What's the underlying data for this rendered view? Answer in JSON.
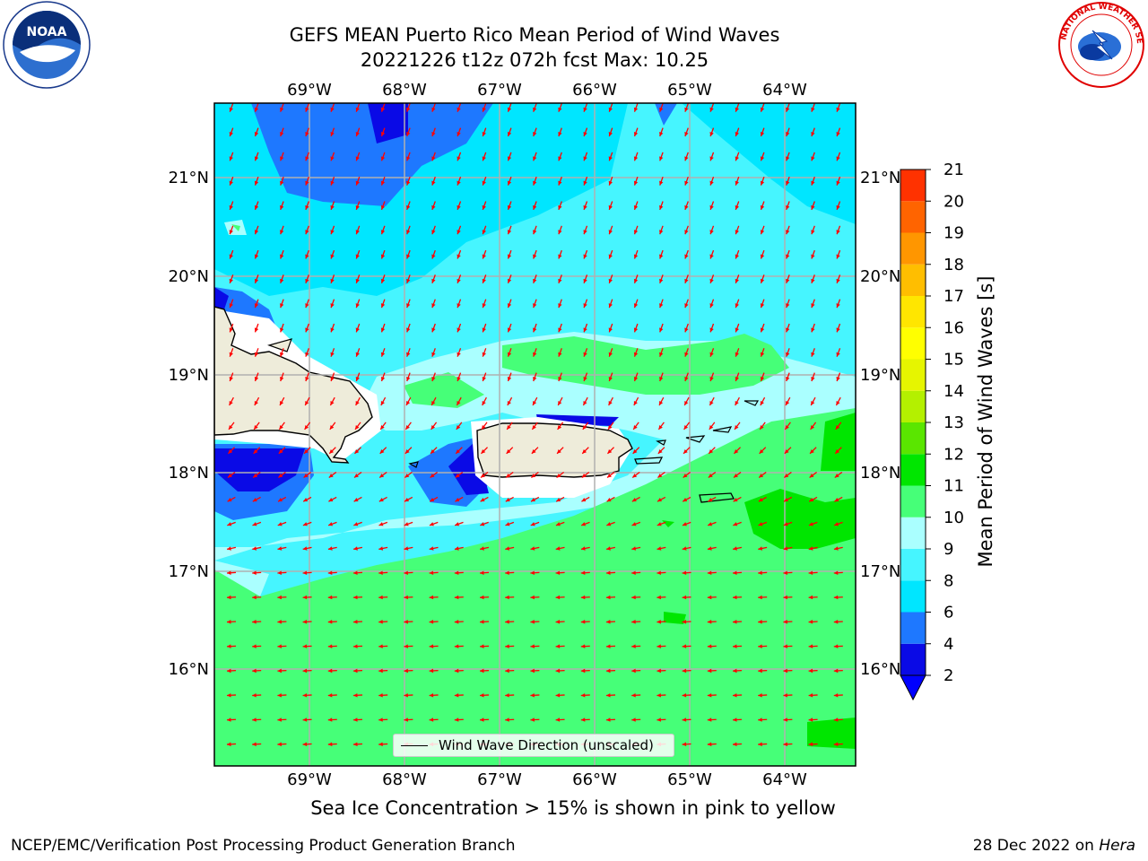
{
  "title_line1": "GEFS MEAN Puerto Rico Mean Period of Wind Waves",
  "title_line2": "20221226 t12z 072h fcst   Max: 10.25",
  "longitude_ticks": [
    "69°W",
    "68°W",
    "67°W",
    "66°W",
    "65°W",
    "64°W"
  ],
  "latitude_ticks": [
    "21°N",
    "20°N",
    "19°N",
    "18°N",
    "17°N",
    "16°N"
  ],
  "colorbar": {
    "label": "Mean Period of Wind Waves [s]",
    "ticks": [
      "2",
      "4",
      "6",
      "8",
      "9",
      "10",
      "11",
      "12",
      "13",
      "14",
      "15",
      "16",
      "17",
      "18",
      "19",
      "20",
      "21"
    ],
    "colors": [
      "#0a0ae6",
      "#1e78ff",
      "#00e6ff",
      "#46f5ff",
      "#aaffff",
      "#46ff78",
      "#00e600",
      "#5ae600",
      "#b4f000",
      "#e6f500",
      "#ffff00",
      "#ffe600",
      "#ffbe00",
      "#ff9600",
      "#ff6400",
      "#ff3200"
    ],
    "under_color": "#0000ff"
  },
  "legend_label": "Wind Wave Direction (unscaled)",
  "sea_ice_note": "Sea Ice Concentration > 15% is shown in pink to yellow",
  "footer_left": "NCEP/EMC/Verification Post Processing Product Generation Branch",
  "footer_date": "28 Dec 2022 on ",
  "footer_machine": "Hera",
  "logos": {
    "left": "noaa-logo",
    "right": "nws-logo"
  },
  "colors": {
    "land": "#eeecda",
    "arrow": "#ff0000",
    "grid": "#b0b0b0"
  }
}
